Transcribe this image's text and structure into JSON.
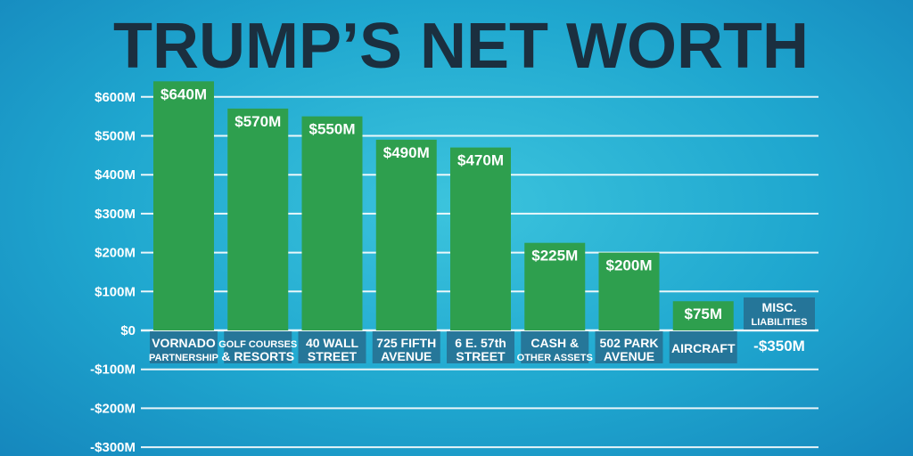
{
  "chart_data": {
    "type": "bar",
    "title": "TRUMP’S NET WORTH",
    "xlabel": "",
    "ylabel": "",
    "ylim": [
      -350,
      650
    ],
    "grid": true,
    "y_ticks": [
      {
        "value": 600,
        "label": "$600M"
      },
      {
        "value": 500,
        "label": "$500M"
      },
      {
        "value": 400,
        "label": "$400M"
      },
      {
        "value": 300,
        "label": "$300M"
      },
      {
        "value": 200,
        "label": "$200M"
      },
      {
        "value": 100,
        "label": "$100M"
      },
      {
        "value": 0,
        "label": "$0"
      },
      {
        "value": -100,
        "label": "-$100M"
      },
      {
        "value": -200,
        "label": "-$200M"
      },
      {
        "value": -300,
        "label": "-$300M"
      }
    ],
    "categories": [
      {
        "line1": "VORNADO",
        "line2": "PARTNERSHIP"
      },
      {
        "line1": "GOLF COURSES",
        "line2": "& RESORTS"
      },
      {
        "line1": "40 WALL",
        "line2": "STREET"
      },
      {
        "line1": "725 FIFTH",
        "line2": "AVENUE"
      },
      {
        "line1": "6 E. 57th",
        "line2": "STREET"
      },
      {
        "line1": "CASH &",
        "line2": "OTHER ASSETS"
      },
      {
        "line1": "502 PARK",
        "line2": "AVENUE"
      },
      {
        "line1": "AIRCRAFT",
        "line2": ""
      },
      {
        "line1": "MISC.",
        "line2": "LIABILITIES"
      }
    ],
    "values": [
      640,
      570,
      550,
      490,
      470,
      225,
      200,
      75,
      -350
    ],
    "data_labels": [
      "$640M",
      "$570M",
      "$550M",
      "$490M",
      "$470M",
      "$225M",
      "$200M",
      "$75M",
      "-$350M"
    ],
    "colors": {
      "positive": "#2e9f4e",
      "negative": "#ea6a5f",
      "title": "#1b2f3f",
      "label_bg": "#276d8f",
      "grid": "#ffffff"
    }
  }
}
